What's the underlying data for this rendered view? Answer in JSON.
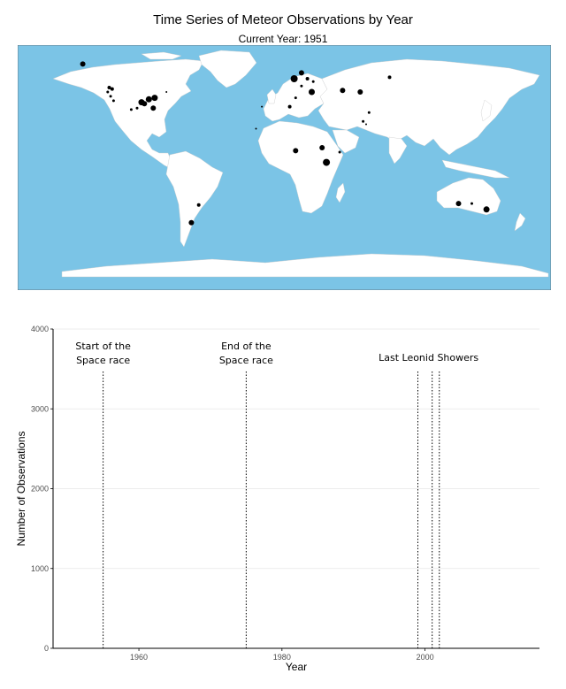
{
  "title": "Time Series of Meteor Observations by Year",
  "subtitle": "Current Year: 1951",
  "colors": {
    "ocean": "#7bc4e6",
    "land": "#ffffff",
    "border": "#bbbbbb",
    "point": "#000000",
    "grid": "#e6e6e6"
  },
  "chart_data": [
    {
      "type": "scatter",
      "title": "",
      "projection": "equirectangular world map",
      "xlim": [
        -180,
        180
      ],
      "ylim": [
        -90,
        90
      ],
      "points": [
        {
          "lon": -137,
          "lat": 63,
          "size": 3
        },
        {
          "lon": -119,
          "lat": 47,
          "size": 2
        },
        {
          "lon": -117,
          "lat": 46,
          "size": 2
        },
        {
          "lon": -120,
          "lat": 44,
          "size": 1.5
        },
        {
          "lon": -118,
          "lat": 41,
          "size": 1.5
        },
        {
          "lon": -116,
          "lat": 38,
          "size": 1.5
        },
        {
          "lon": -104,
          "lat": 32,
          "size": 1.5
        },
        {
          "lon": -100,
          "lat": 33,
          "size": 1.5
        },
        {
          "lon": -97,
          "lat": 37,
          "size": 3.5
        },
        {
          "lon": -95,
          "lat": 36,
          "size": 3
        },
        {
          "lon": -92,
          "lat": 39,
          "size": 3.5
        },
        {
          "lon": -88,
          "lat": 40,
          "size": 3.5
        },
        {
          "lon": -89,
          "lat": 33,
          "size": 3
        },
        {
          "lon": -80,
          "lat": 44,
          "size": 1
        },
        {
          "lon": 12,
          "lat": 57,
          "size": 3
        },
        {
          "lon": 7,
          "lat": 53,
          "size": 4
        },
        {
          "lon": 16,
          "lat": 53,
          "size": 2
        },
        {
          "lon": 20,
          "lat": 51,
          "size": 1.5
        },
        {
          "lon": 12,
          "lat": 48,
          "size": 1.5
        },
        {
          "lon": 19,
          "lat": 44,
          "size": 3.5
        },
        {
          "lon": 8,
          "lat": 40,
          "size": 1.5
        },
        {
          "lon": 40,
          "lat": 45,
          "size": 3
        },
        {
          "lon": 52,
          "lat": 44,
          "size": 3
        },
        {
          "lon": 72,
          "lat": 54,
          "size": 2
        },
        {
          "lon": 58,
          "lat": 30,
          "size": 1.5
        },
        {
          "lon": 54,
          "lat": 24,
          "size": 1.5
        },
        {
          "lon": 56,
          "lat": 22,
          "size": 1
        },
        {
          "lon": -15,
          "lat": 34,
          "size": 1
        },
        {
          "lon": 4,
          "lat": 34,
          "size": 2
        },
        {
          "lon": -19,
          "lat": 19,
          "size": 1
        },
        {
          "lon": 8,
          "lat": 4,
          "size": 3
        },
        {
          "lon": 26,
          "lat": 6,
          "size": 3
        },
        {
          "lon": 38,
          "lat": 3,
          "size": 1.5
        },
        {
          "lon": 29,
          "lat": -4,
          "size": 4
        },
        {
          "lon": -58,
          "lat": -33,
          "size": 2
        },
        {
          "lon": -63,
          "lat": -45,
          "size": 3
        },
        {
          "lon": 119,
          "lat": -32,
          "size": 3
        },
        {
          "lon": 128,
          "lat": -32,
          "size": 1.5
        },
        {
          "lon": 138,
          "lat": -36,
          "size": 3.5
        }
      ]
    },
    {
      "type": "line",
      "title": "",
      "xlabel": "Year",
      "ylabel": "Number of Observations",
      "xlim": [
        1948,
        2016
      ],
      "ylim": [
        0,
        4000
      ],
      "xticks": [
        1960,
        1980,
        2000
      ],
      "yticks": [
        0,
        1000,
        2000,
        3000,
        4000
      ],
      "grid": true,
      "series": [],
      "vlines": [
        {
          "x": 1955,
          "label_lines": [
            "Start of the",
            "Space race"
          ]
        },
        {
          "x": 1975,
          "label_lines": [
            "End of the",
            "Space race"
          ]
        },
        {
          "x": 1999,
          "label_lines": []
        },
        {
          "x": 2001,
          "label_lines": []
        },
        {
          "x": 2002,
          "label_lines": []
        }
      ],
      "group_annotation": {
        "label": "Last Leonid Showers",
        "x": 2000.5
      }
    }
  ]
}
